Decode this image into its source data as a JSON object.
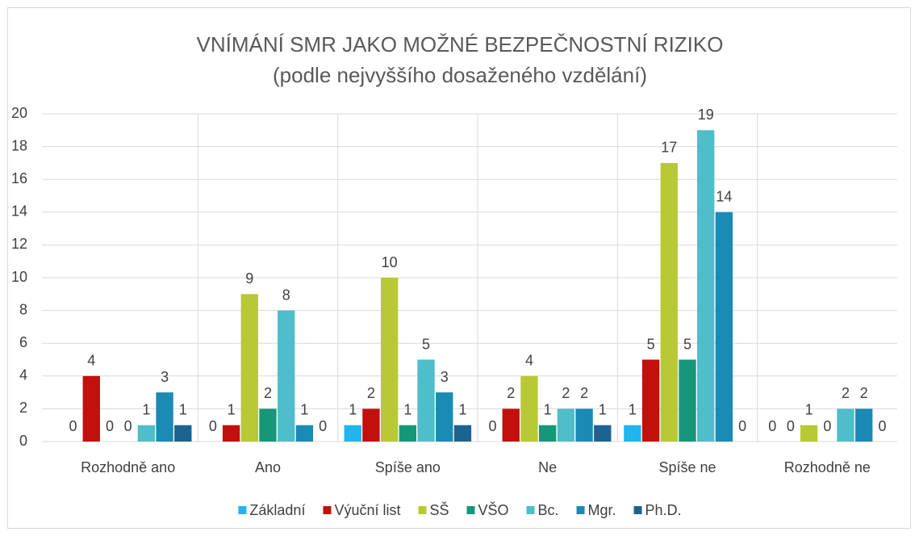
{
  "chart_data": {
    "type": "bar",
    "title": "VNÍMÁNÍ SMR JAKO MOŽNÉ BEZPEČNOSTNÍ RIZIKO",
    "subtitle": "(podle nejvyššího dosaženého vzdělání)",
    "categories": [
      "Rozhodně ano",
      "Ano",
      "Spíše ano",
      "Ne",
      "Spíše ne",
      "Rozhodně ne"
    ],
    "series": [
      {
        "name": "Základní",
        "color": "#22b4ec",
        "values": [
          0,
          0,
          1,
          0,
          1,
          0
        ]
      },
      {
        "name": "Výuční list",
        "color": "#c40f0f",
        "values": [
          4,
          1,
          2,
          2,
          5,
          0
        ]
      },
      {
        "name": "SŠ",
        "color": "#b8c935",
        "values": [
          0,
          9,
          10,
          4,
          17,
          1
        ]
      },
      {
        "name": "VŠO",
        "color": "#17977a",
        "values": [
          0,
          2,
          1,
          1,
          5,
          0
        ]
      },
      {
        "name": "Bc.",
        "color": "#4fbdca",
        "values": [
          1,
          8,
          5,
          2,
          19,
          2
        ]
      },
      {
        "name": "Mgr.",
        "color": "#1b8ab4",
        "values": [
          3,
          1,
          3,
          2,
          14,
          2
        ]
      },
      {
        "name": "Ph.D.",
        "color": "#1b6390",
        "values": [
          1,
          0,
          1,
          1,
          0,
          0
        ]
      }
    ],
    "ylim": [
      0,
      20
    ],
    "yticks": [
      0,
      2,
      4,
      6,
      8,
      10,
      12,
      14,
      16,
      18,
      20
    ],
    "grid": true,
    "legend": "bottom"
  }
}
